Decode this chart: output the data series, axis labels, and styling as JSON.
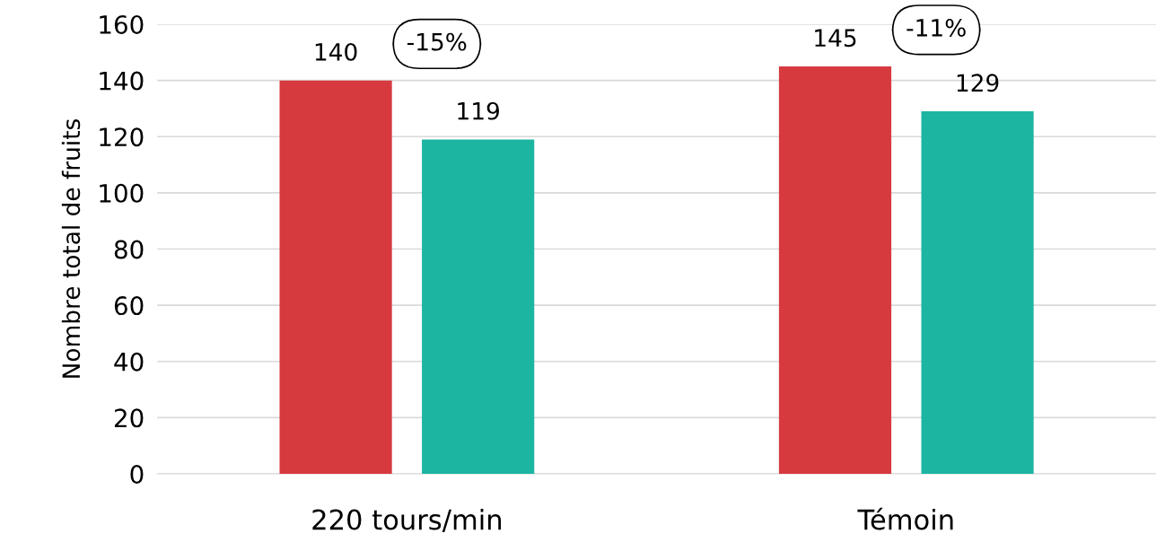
{
  "chart_data": {
    "type": "bar",
    "ylabel": "Nombre total de fruits",
    "categories": [
      "220 tours/min",
      "Témoin"
    ],
    "series": [
      {
        "color": "#d63a3f",
        "values": [
          140,
          145
        ]
      },
      {
        "color": "#1cb5a2",
        "values": [
          119,
          129
        ]
      }
    ],
    "ylim": [
      0,
      160
    ],
    "yticks": [
      0,
      20,
      40,
      60,
      80,
      100,
      120,
      140,
      160
    ],
    "grid": "y",
    "data_labels": true,
    "annotations": [
      "-15%",
      "-11%"
    ]
  }
}
